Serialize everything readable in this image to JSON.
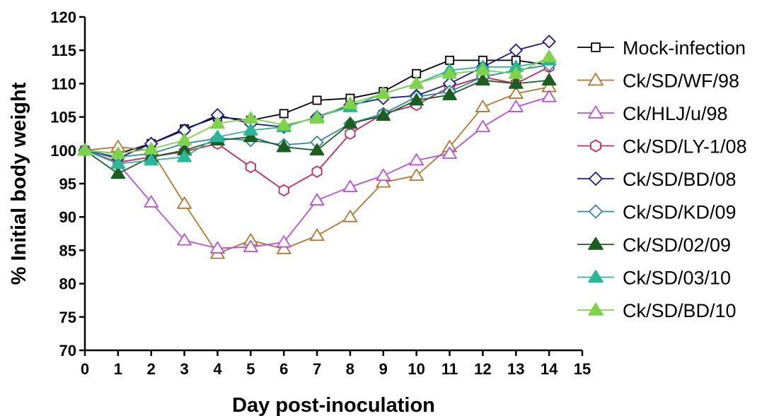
{
  "chart_data": {
    "type": "line",
    "xlabel": "Day post-inoculation",
    "ylabel": "% Initial body weight",
    "xlim": [
      0,
      15
    ],
    "ylim": [
      70,
      120
    ],
    "xticks": [
      "0",
      "1",
      "2",
      "3",
      "4",
      "5",
      "6",
      "7",
      "8",
      "9",
      "10",
      "11",
      "12",
      "13",
      "14",
      "15"
    ],
    "yticks": [
      "70",
      "75",
      "80",
      "85",
      "90",
      "95",
      "100",
      "105",
      "110",
      "115",
      "120"
    ],
    "grid": false,
    "legend_position": "right",
    "x": [
      0,
      1,
      2,
      3,
      4,
      5,
      6,
      7,
      8,
      9,
      10,
      11,
      12,
      13,
      14
    ],
    "series": [
      {
        "name": "Mock-infection",
        "color": "#000000",
        "marker": "square",
        "filled": false,
        "values": [
          100,
          99.5,
          101,
          103.2,
          105,
          104.5,
          105.5,
          107.5,
          107.8,
          108.8,
          111.5,
          113.5,
          113.5,
          113.5,
          112.8
        ]
      },
      {
        "name": "Ck/SD/WF/98",
        "color": "#b5752a",
        "marker": "triangle",
        "filled": false,
        "values": [
          100,
          100.5,
          100,
          92,
          84.5,
          86.5,
          85.2,
          87.2,
          90,
          95.2,
          96.2,
          100.5,
          106.5,
          108.5,
          109.5
        ]
      },
      {
        "name": "Ck/HLJ/u/98",
        "color": "#b84fd8",
        "marker": "triangle",
        "filled": false,
        "values": [
          100,
          98,
          92.2,
          86.5,
          85.3,
          85.5,
          86.2,
          92.5,
          94.5,
          96.2,
          98.5,
          99.5,
          103.5,
          106.5,
          108
        ]
      },
      {
        "name": "Ck/SD/LY-1/08",
        "color": "#c8255c",
        "marker": "hexagon",
        "filled": false,
        "values": [
          100,
          98.2,
          99,
          99.8,
          101,
          97.5,
          94,
          96.8,
          102.5,
          105.5,
          106.8,
          109.5,
          111,
          110,
          112.5
        ]
      },
      {
        "name": "Ck/SD/BD/08",
        "color": "#1a1a8c",
        "marker": "diamond",
        "filled": false,
        "values": [
          100,
          98.8,
          101,
          103,
          105.3,
          104,
          103.5,
          105,
          106.8,
          107.8,
          108.2,
          110,
          112.5,
          115,
          116.3
        ]
      },
      {
        "name": "Ck/SD/KD/09",
        "color": "#2a8aa2",
        "marker": "diamond",
        "filled": false,
        "values": [
          100,
          99,
          99.5,
          101,
          101.8,
          101.5,
          100.8,
          101.2,
          104,
          105.5,
          108,
          108.8,
          111,
          112,
          112.8
        ]
      },
      {
        "name": "Ck/SD/02/09",
        "color": "#1b5e20",
        "marker": "triangle",
        "filled": true,
        "values": [
          100,
          96.5,
          99,
          100,
          101.5,
          102,
          100.5,
          100,
          104,
          105.2,
          107.5,
          108.3,
          110.5,
          110,
          110.5
        ]
      },
      {
        "name": "Ck/SD/03/10",
        "color": "#27b899",
        "marker": "triangle",
        "filled": true,
        "values": [
          100,
          98,
          98.5,
          99,
          102,
          103,
          103.5,
          105,
          106.5,
          108.5,
          110,
          112,
          112.5,
          112.5,
          113.5
        ]
      },
      {
        "name": "Ck/SD/BD/10",
        "color": "#7ed348",
        "marker": "triangle",
        "filled": true,
        "values": [
          100,
          99.5,
          100.2,
          101.5,
          104,
          104.8,
          103.8,
          104.8,
          107,
          108.5,
          110,
          111.5,
          112,
          111.5,
          114
        ]
      }
    ]
  }
}
